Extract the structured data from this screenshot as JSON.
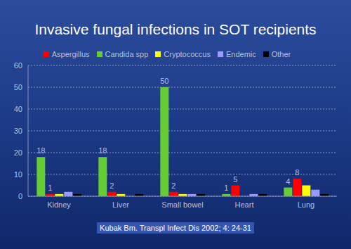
{
  "chart_data": {
    "type": "bar",
    "title": "Invasive fungal infections in SOT recipients",
    "annotations": [
      "Kubak Bm. Transpl Infect Dis 2002; 4: 24-31"
    ],
    "categories": [
      "Kidney",
      "Liver",
      "Small bowel",
      "Heart",
      "Lung"
    ],
    "series": [
      {
        "name": "Candida spp",
        "color": "#66cc33",
        "values": [
          18,
          18,
          50,
          1,
          4
        ],
        "data_labels": true
      },
      {
        "name": "Aspergillus",
        "color": "#ff0000",
        "values": [
          1,
          2,
          2,
          5,
          8
        ],
        "data_labels": true
      },
      {
        "name": "Cryptococcus",
        "color": "#ffff00",
        "values": [
          1,
          1,
          1,
          0,
          5
        ]
      },
      {
        "name": "Endemic",
        "color": "#9999ff",
        "values": [
          2,
          0,
          1,
          1,
          3
        ]
      },
      {
        "name": "Other",
        "color": "#000000",
        "values": [
          1,
          1,
          1,
          1,
          1
        ]
      }
    ],
    "ylim": [
      0,
      60
    ],
    "yticks": [
      0,
      10,
      20,
      30,
      40,
      50,
      60
    ],
    "grid": true,
    "legend": "top"
  }
}
